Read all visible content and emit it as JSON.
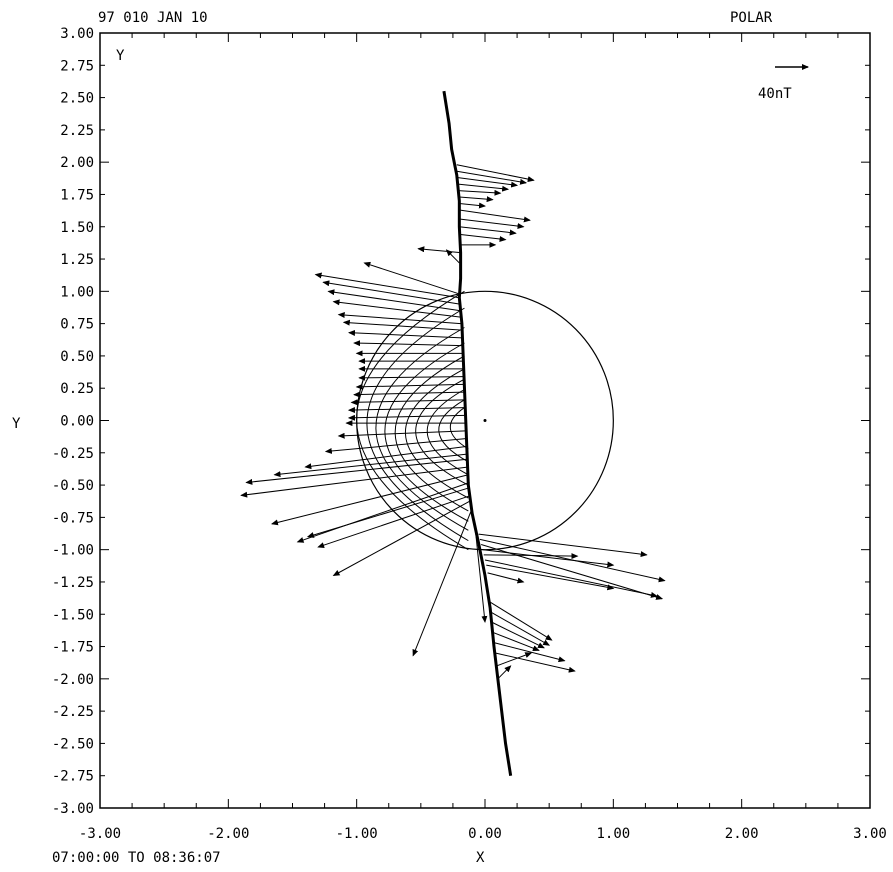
{
  "header": {
    "date_label": "97 010 JAN 10",
    "spacecraft_label": "POLAR"
  },
  "footer": {
    "time_range": "07:00:00 TO 08:36:07"
  },
  "scale_label": "40nT",
  "chart_data": {
    "type": "vector-field",
    "xlabel": "X",
    "ylabel": "Y",
    "corner_label": "Y",
    "xlim": [
      -3,
      3
    ],
    "ylim": [
      -3,
      3
    ],
    "grid": false,
    "x_ticks": [
      "-3.00",
      "-2.00",
      "-1.00",
      "0.00",
      "1.00",
      "2.00",
      "3.00"
    ],
    "y_ticks": [
      "3.00",
      "2.75",
      "2.50",
      "2.25",
      "2.00",
      "1.75",
      "1.50",
      "1.25",
      "1.00",
      "0.75",
      "0.50",
      "0.25",
      "0.00",
      "-0.25",
      "-0.50",
      "-0.75",
      "-1.00",
      "-1.25",
      "-1.50",
      "-1.75",
      "-2.00",
      "-2.25",
      "-2.50",
      "-2.75",
      "-3.00"
    ],
    "earth_circle": {
      "center": [
        0,
        0
      ],
      "radius": 1.0
    },
    "field_lines": [
      {
        "x_min": -1.0,
        "y_top": 1.0,
        "y_bot": -1.0
      },
      {
        "x_min": -0.92,
        "y_top": 0.87,
        "y_bot": -0.93
      },
      {
        "x_min": -0.85,
        "y_top": 0.72,
        "y_bot": -0.85
      },
      {
        "x_min": -0.78,
        "y_top": 0.6,
        "y_bot": -0.78
      },
      {
        "x_min": -0.7,
        "y_top": 0.5,
        "y_bot": -0.7
      },
      {
        "x_min": -0.62,
        "y_top": 0.4,
        "y_bot": -0.6
      },
      {
        "x_min": -0.54,
        "y_top": 0.32,
        "y_bot": -0.5
      },
      {
        "x_min": -0.45,
        "y_top": 0.24,
        "y_bot": -0.42
      },
      {
        "x_min": -0.36,
        "y_top": 0.16,
        "y_bot": -0.32
      },
      {
        "x_min": -0.27,
        "y_top": 0.1,
        "y_bot": -0.22
      }
    ],
    "orbit": [
      [
        -0.32,
        2.55
      ],
      [
        -0.28,
        2.3
      ],
      [
        -0.26,
        2.1
      ],
      [
        -0.22,
        1.9
      ],
      [
        -0.2,
        1.7
      ],
      [
        -0.2,
        1.5
      ],
      [
        -0.19,
        1.3
      ],
      [
        -0.19,
        1.1
      ],
      [
        -0.2,
        0.95
      ],
      [
        -0.18,
        0.75
      ],
      [
        -0.17,
        0.5
      ],
      [
        -0.16,
        0.25
      ],
      [
        -0.15,
        0.0
      ],
      [
        -0.14,
        -0.25
      ],
      [
        -0.13,
        -0.5
      ],
      [
        -0.1,
        -0.72
      ],
      [
        -0.05,
        -0.95
      ],
      [
        0.0,
        -1.2
      ],
      [
        0.04,
        -1.45
      ],
      [
        0.07,
        -1.75
      ],
      [
        0.1,
        -2.0
      ],
      [
        0.13,
        -2.25
      ],
      [
        0.16,
        -2.5
      ],
      [
        0.2,
        -2.75
      ]
    ],
    "vectors": [
      [
        -0.22,
        1.98,
        0.38,
        1.86
      ],
      [
        -0.22,
        1.93,
        0.32,
        1.84
      ],
      [
        -0.21,
        1.88,
        0.25,
        1.82
      ],
      [
        -0.21,
        1.83,
        0.18,
        1.79
      ],
      [
        -0.21,
        1.78,
        0.12,
        1.76
      ],
      [
        -0.2,
        1.73,
        0.06,
        1.71
      ],
      [
        -0.2,
        1.68,
        0.0,
        1.66
      ],
      [
        -0.2,
        1.63,
        0.35,
        1.55
      ],
      [
        -0.2,
        1.56,
        0.3,
        1.5
      ],
      [
        -0.2,
        1.5,
        0.24,
        1.45
      ],
      [
        -0.19,
        1.44,
        0.16,
        1.4
      ],
      [
        -0.19,
        1.36,
        0.08,
        1.36
      ],
      [
        -0.19,
        1.3,
        -0.52,
        1.33
      ],
      [
        -0.2,
        1.22,
        -0.3,
        1.32
      ],
      [
        -0.2,
        0.98,
        -0.94,
        1.22
      ],
      [
        -0.2,
        0.95,
        -1.32,
        1.13
      ],
      [
        -0.19,
        0.9,
        -1.26,
        1.07
      ],
      [
        -0.19,
        0.85,
        -1.22,
        1.0
      ],
      [
        -0.19,
        0.8,
        -1.18,
        0.92
      ],
      [
        -0.19,
        0.75,
        -1.14,
        0.82
      ],
      [
        -0.18,
        0.7,
        -1.1,
        0.76
      ],
      [
        -0.18,
        0.64,
        -1.06,
        0.68
      ],
      [
        -0.18,
        0.58,
        -1.02,
        0.6
      ],
      [
        -0.18,
        0.52,
        -1.0,
        0.52
      ],
      [
        -0.17,
        0.46,
        -0.98,
        0.46
      ],
      [
        -0.17,
        0.4,
        -0.98,
        0.4
      ],
      [
        -0.17,
        0.34,
        -0.98,
        0.33
      ],
      [
        -0.17,
        0.28,
        -1.0,
        0.26
      ],
      [
        -0.16,
        0.22,
        -1.02,
        0.2
      ],
      [
        -0.16,
        0.16,
        -1.04,
        0.14
      ],
      [
        -0.16,
        0.1,
        -1.06,
        0.08
      ],
      [
        -0.16,
        0.04,
        -1.06,
        0.02
      ],
      [
        -0.15,
        -0.02,
        -1.08,
        -0.02
      ],
      [
        -0.15,
        -0.08,
        -1.14,
        -0.12
      ],
      [
        -0.15,
        -0.14,
        -1.24,
        -0.24
      ],
      [
        -0.14,
        -0.2,
        -1.4,
        -0.36
      ],
      [
        -0.14,
        -0.26,
        -1.64,
        -0.42
      ],
      [
        -0.14,
        -0.3,
        -1.86,
        -0.48
      ],
      [
        -0.13,
        -0.36,
        -1.9,
        -0.58
      ],
      [
        -0.13,
        -0.42,
        -1.66,
        -0.8
      ],
      [
        -0.12,
        -0.48,
        -1.46,
        -0.94
      ],
      [
        -0.12,
        -0.52,
        -1.38,
        -0.9
      ],
      [
        -0.11,
        -0.58,
        -1.3,
        -0.98
      ],
      [
        -0.11,
        -0.62,
        -1.18,
        -1.2
      ],
      [
        -0.1,
        -0.68,
        -0.56,
        -1.82
      ],
      [
        -0.08,
        -0.8,
        0.0,
        -1.56
      ],
      [
        -0.05,
        -0.88,
        1.26,
        -1.04
      ],
      [
        -0.04,
        -0.92,
        1.4,
        -1.24
      ],
      [
        -0.03,
        -0.96,
        1.38,
        -1.38
      ],
      [
        -0.02,
        -1.0,
        1.0,
        -1.12
      ],
      [
        -0.01,
        -1.04,
        0.72,
        -1.05
      ],
      [
        0.0,
        -1.08,
        1.34,
        -1.36
      ],
      [
        0.01,
        -1.12,
        1.0,
        -1.3
      ],
      [
        0.02,
        -1.18,
        0.3,
        -1.25
      ],
      [
        0.03,
        -1.4,
        0.52,
        -1.7
      ],
      [
        0.04,
        -1.48,
        0.5,
        -1.74
      ],
      [
        0.05,
        -1.56,
        0.46,
        -1.76
      ],
      [
        0.06,
        -1.64,
        0.42,
        -1.78
      ],
      [
        0.07,
        -1.72,
        0.62,
        -1.86
      ],
      [
        0.08,
        -1.8,
        0.7,
        -1.94
      ],
      [
        0.09,
        -1.9,
        0.36,
        -1.8
      ],
      [
        0.1,
        -2.0,
        0.2,
        -1.9
      ]
    ]
  }
}
